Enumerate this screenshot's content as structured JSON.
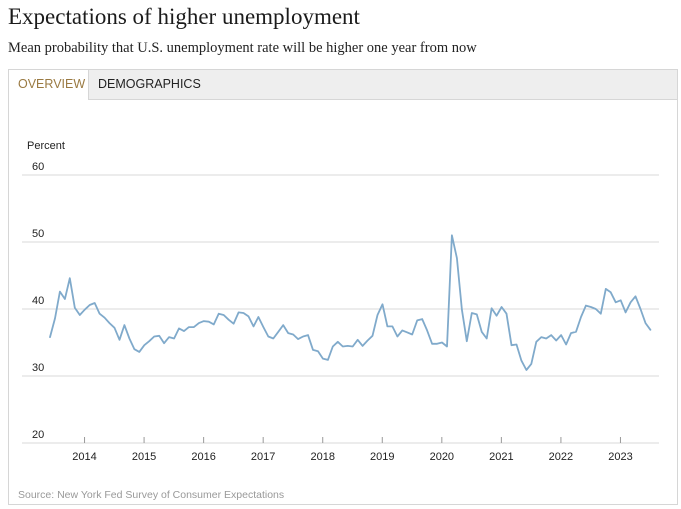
{
  "title": "Expectations of higher unemployment",
  "subtitle": "Mean probability that U.S. unemployment rate will be higher one year from now",
  "tabs": [
    {
      "label": "OVERVIEW",
      "active": true
    },
    {
      "label": "DEMOGRAPHICS",
      "active": false
    }
  ],
  "source": "Source: New York Fed Survey of Consumer Expectations",
  "colors": {
    "line": "#80aacb",
    "grid": "#d9d9d9",
    "active_tab": "#9a7a42"
  },
  "chart_data": {
    "type": "line",
    "title": "Expectations of higher unemployment",
    "ylabel": "Percent",
    "xlabel": "",
    "ylim": [
      20,
      60
    ],
    "yticks": [
      20,
      30,
      40,
      50,
      60
    ],
    "xlim": [
      2013.42,
      2023.58
    ],
    "xticks": [
      {
        "label": "2014",
        "value": 2014.0
      },
      {
        "label": "2015",
        "value": 2015.0
      },
      {
        "label": "2016",
        "value": 2016.0
      },
      {
        "label": "2017",
        "value": 2017.0
      },
      {
        "label": "2018",
        "value": 2018.0
      },
      {
        "label": "2019",
        "value": 2019.0
      },
      {
        "label": "2020",
        "value": 2020.0
      },
      {
        "label": "2021",
        "value": 2021.0
      },
      {
        "label": "2022",
        "value": 2022.0
      },
      {
        "label": "2023",
        "value": 2023.0
      }
    ],
    "grid": true,
    "series": [
      {
        "name": "Mean probability",
        "start": 2013.42,
        "step_months": 1,
        "values": [
          35.8,
          38.6,
          42.6,
          41.5,
          44.6,
          40.2,
          39.1,
          39.9,
          40.6,
          40.9,
          39.3,
          38.7,
          37.9,
          37.2,
          35.4,
          37.6,
          35.6,
          34.0,
          33.6,
          34.6,
          35.2,
          35.9,
          36.0,
          34.9,
          35.8,
          35.6,
          37.1,
          36.7,
          37.3,
          37.3,
          37.9,
          38.2,
          38.1,
          37.7,
          39.3,
          39.1,
          38.4,
          37.8,
          39.5,
          39.4,
          38.9,
          37.4,
          38.8,
          37.3,
          35.9,
          35.6,
          36.6,
          37.6,
          36.4,
          36.2,
          35.5,
          35.9,
          36.1,
          33.9,
          33.7,
          32.6,
          32.4,
          34.4,
          35.1,
          34.4,
          34.5,
          34.4,
          35.4,
          34.5,
          35.3,
          36.0,
          39.1,
          40.7,
          37.4,
          37.4,
          35.9,
          36.8,
          36.5,
          36.2,
          38.3,
          38.5,
          36.8,
          34.8,
          34.8,
          35.0,
          34.4,
          51.0,
          47.6,
          39.9,
          35.2,
          39.4,
          39.2,
          36.6,
          35.6,
          40.1,
          39.0,
          40.3,
          39.3,
          34.6,
          34.7,
          32.3,
          30.9,
          31.8,
          35.1,
          35.8,
          35.6,
          36.1,
          35.3,
          36.1,
          34.7,
          36.4,
          36.6,
          38.8,
          40.5,
          40.3,
          40.0,
          39.3,
          43.0,
          42.5,
          41.0,
          41.3,
          39.5,
          41.0,
          41.9,
          40.0,
          37.9,
          36.9
        ]
      }
    ]
  }
}
